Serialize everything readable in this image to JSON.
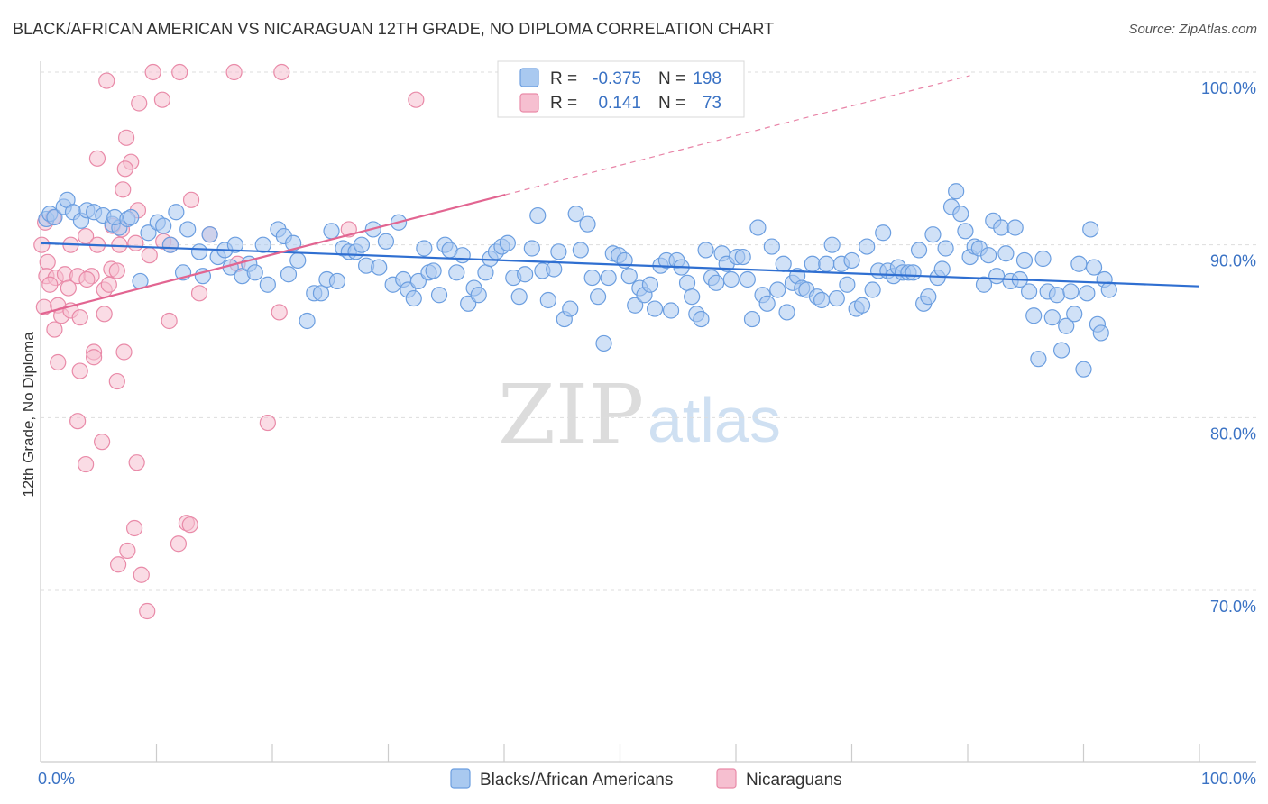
{
  "title": "BLACK/AFRICAN AMERICAN VS NICARAGUAN 12TH GRADE, NO DIPLOMA CORRELATION CHART",
  "source": "Source: ZipAtlas.com",
  "watermark": {
    "zip": "ZIP",
    "atlas": "atlas"
  },
  "colors": {
    "blue_fill": "#a9c9f0",
    "blue_stroke": "#6b9ee0",
    "blue_line": "#2f6fd1",
    "pink_fill": "#f6bfd0",
    "pink_stroke": "#e98aa8",
    "pink_line": "#e26591",
    "tick_text": "#3a72c4",
    "grid": "#dddddd"
  },
  "legend": {
    "r_label": "R =",
    "n_label": "N =",
    "rows": [
      {
        "r": "-0.375",
        "n": "198",
        "color": "blue"
      },
      {
        "r": "0.141",
        "n": "73",
        "color": "pink"
      }
    ]
  },
  "chart_data": {
    "type": "scatter",
    "title": "BLACK/AFRICAN AMERICAN VS NICARAGUAN 12TH GRADE, NO DIPLOMA CORRELATION CHART",
    "xlabel": "",
    "ylabel": "12th Grade, No Diploma",
    "xlim": [
      0,
      100
    ],
    "ylim": [
      59.5,
      100.8
    ],
    "y_ticks": [
      {
        "value": 70,
        "label": "70.0%"
      },
      {
        "value": 80,
        "label": "80.0%"
      },
      {
        "value": 90,
        "label": "90.0%"
      },
      {
        "value": 100,
        "label": "100.0%"
      }
    ],
    "x_tick_labels": {
      "left": "0.0%",
      "right": "100.0%"
    },
    "x_minor_ticks": [
      10,
      20,
      30,
      40,
      50,
      60,
      70,
      80,
      90
    ],
    "grid": true,
    "legend_position": "top-center",
    "series": [
      {
        "name": "Blacks/African Americans",
        "color": "blue",
        "trend": {
          "x": [
            0,
            100
          ],
          "y": [
            90.1,
            87.6
          ],
          "dashed_extension": false
        },
        "points": [
          [
            0.5,
            91.5
          ],
          [
            0.8,
            91.8
          ],
          [
            1.2,
            91.6
          ],
          [
            2.0,
            92.2
          ],
          [
            2.3,
            92.6
          ],
          [
            2.8,
            91.9
          ],
          [
            3.5,
            91.4
          ],
          [
            4.0,
            92.0
          ],
          [
            4.6,
            91.9
          ],
          [
            5.4,
            91.7
          ],
          [
            6.2,
            91.2
          ],
          [
            6.8,
            91.0
          ],
          [
            6.4,
            91.6
          ],
          [
            7.5,
            91.5
          ],
          [
            7.8,
            91.6
          ],
          [
            8.6,
            87.9
          ],
          [
            9.3,
            90.7
          ],
          [
            10.1,
            91.3
          ],
          [
            10.6,
            91.1
          ],
          [
            11.2,
            90.0
          ],
          [
            11.7,
            91.9
          ],
          [
            12.3,
            88.4
          ],
          [
            12.7,
            90.9
          ],
          [
            13.7,
            89.6
          ],
          [
            14.0,
            88.2
          ],
          [
            14.6,
            90.6
          ],
          [
            15.3,
            89.3
          ],
          [
            15.9,
            89.7
          ],
          [
            16.4,
            88.7
          ],
          [
            16.8,
            90.0
          ],
          [
            17.4,
            88.2
          ],
          [
            18.0,
            88.9
          ],
          [
            18.5,
            88.4
          ],
          [
            19.2,
            90.0
          ],
          [
            19.6,
            87.7
          ],
          [
            20.5,
            90.9
          ],
          [
            21.0,
            90.5
          ],
          [
            21.4,
            88.3
          ],
          [
            21.8,
            90.1
          ],
          [
            22.2,
            89.1
          ],
          [
            23.0,
            85.6
          ],
          [
            23.6,
            87.2
          ],
          [
            24.2,
            87.2
          ],
          [
            24.7,
            88.0
          ],
          [
            25.1,
            90.8
          ],
          [
            25.6,
            87.9
          ],
          [
            26.1,
            89.8
          ],
          [
            26.6,
            89.6
          ],
          [
            27.2,
            89.6
          ],
          [
            27.7,
            90.0
          ],
          [
            28.1,
            88.8
          ],
          [
            28.7,
            90.9
          ],
          [
            29.2,
            88.7
          ],
          [
            29.8,
            90.2
          ],
          [
            30.4,
            87.7
          ],
          [
            30.9,
            91.3
          ],
          [
            31.3,
            88.0
          ],
          [
            31.7,
            87.4
          ],
          [
            32.2,
            86.9
          ],
          [
            32.6,
            87.9
          ],
          [
            33.1,
            89.8
          ],
          [
            33.5,
            88.4
          ],
          [
            33.9,
            88.5
          ],
          [
            34.4,
            87.1
          ],
          [
            34.9,
            90.0
          ],
          [
            35.3,
            89.7
          ],
          [
            35.9,
            88.4
          ],
          [
            36.4,
            89.4
          ],
          [
            36.9,
            86.6
          ],
          [
            37.4,
            87.5
          ],
          [
            37.8,
            87.1
          ],
          [
            38.4,
            88.4
          ],
          [
            38.8,
            89.2
          ],
          [
            39.3,
            89.6
          ],
          [
            39.8,
            89.9
          ],
          [
            40.3,
            90.1
          ],
          [
            40.8,
            88.1
          ],
          [
            41.3,
            87.0
          ],
          [
            41.8,
            88.3
          ],
          [
            42.4,
            89.8
          ],
          [
            42.9,
            91.7
          ],
          [
            43.3,
            88.5
          ],
          [
            43.8,
            86.8
          ],
          [
            44.3,
            88.6
          ],
          [
            44.7,
            89.6
          ],
          [
            45.2,
            85.7
          ],
          [
            45.7,
            86.3
          ],
          [
            46.2,
            91.8
          ],
          [
            46.6,
            89.7
          ],
          [
            47.2,
            91.2
          ],
          [
            47.6,
            88.1
          ],
          [
            48.1,
            87.0
          ],
          [
            48.6,
            84.3
          ],
          [
            49.0,
            88.1
          ],
          [
            49.4,
            89.5
          ],
          [
            49.9,
            89.4
          ],
          [
            50.4,
            89.1
          ],
          [
            50.8,
            88.2
          ],
          [
            51.3,
            86.5
          ],
          [
            51.7,
            87.5
          ],
          [
            52.1,
            87.1
          ],
          [
            52.6,
            87.7
          ],
          [
            53.0,
            86.3
          ],
          [
            53.5,
            88.8
          ],
          [
            54.0,
            89.1
          ],
          [
            54.4,
            86.2
          ],
          [
            54.9,
            89.1
          ],
          [
            55.3,
            88.7
          ],
          [
            55.8,
            87.8
          ],
          [
            56.2,
            87.0
          ],
          [
            56.6,
            86.0
          ],
          [
            57.0,
            85.7
          ],
          [
            57.4,
            89.7
          ],
          [
            57.9,
            88.1
          ],
          [
            58.3,
            87.8
          ],
          [
            58.8,
            89.5
          ],
          [
            59.2,
            88.9
          ],
          [
            59.6,
            88.0
          ],
          [
            60.1,
            89.3
          ],
          [
            60.6,
            89.3
          ],
          [
            61.0,
            88.0
          ],
          [
            61.4,
            85.7
          ],
          [
            61.9,
            91.0
          ],
          [
            62.3,
            87.1
          ],
          [
            62.7,
            86.6
          ],
          [
            63.1,
            89.9
          ],
          [
            63.6,
            87.4
          ],
          [
            64.1,
            88.9
          ],
          [
            64.4,
            86.1
          ],
          [
            64.9,
            87.8
          ],
          [
            65.3,
            88.2
          ],
          [
            65.7,
            87.5
          ],
          [
            66.1,
            87.4
          ],
          [
            66.6,
            88.9
          ],
          [
            67.0,
            87.0
          ],
          [
            67.4,
            86.8
          ],
          [
            67.8,
            88.9
          ],
          [
            68.3,
            90.0
          ],
          [
            68.7,
            86.9
          ],
          [
            69.1,
            88.9
          ],
          [
            69.6,
            87.7
          ],
          [
            70.0,
            89.1
          ],
          [
            70.4,
            86.3
          ],
          [
            70.9,
            86.5
          ],
          [
            71.3,
            89.9
          ],
          [
            71.8,
            87.4
          ],
          [
            72.3,
            88.5
          ],
          [
            72.7,
            90.7
          ],
          [
            73.1,
            88.5
          ],
          [
            73.6,
            88.2
          ],
          [
            74.0,
            88.7
          ],
          [
            74.4,
            88.4
          ],
          [
            74.9,
            88.4
          ],
          [
            75.3,
            88.4
          ],
          [
            75.8,
            89.7
          ],
          [
            76.2,
            86.6
          ],
          [
            76.6,
            87.0
          ],
          [
            77.0,
            90.6
          ],
          [
            77.4,
            88.1
          ],
          [
            77.8,
            88.6
          ],
          [
            78.1,
            89.8
          ],
          [
            78.6,
            92.2
          ],
          [
            79.0,
            93.1
          ],
          [
            79.4,
            91.8
          ],
          [
            79.8,
            90.8
          ],
          [
            80.2,
            89.3
          ],
          [
            80.6,
            89.9
          ],
          [
            81.0,
            89.8
          ],
          [
            81.4,
            87.7
          ],
          [
            81.8,
            89.4
          ],
          [
            82.2,
            91.4
          ],
          [
            82.5,
            88.2
          ],
          [
            82.9,
            91.0
          ],
          [
            83.3,
            89.5
          ],
          [
            83.7,
            87.9
          ],
          [
            84.1,
            91.0
          ],
          [
            84.5,
            88.0
          ],
          [
            84.9,
            89.1
          ],
          [
            85.3,
            87.3
          ],
          [
            85.7,
            85.9
          ],
          [
            86.1,
            83.4
          ],
          [
            86.5,
            89.2
          ],
          [
            86.9,
            87.3
          ],
          [
            87.3,
            85.8
          ],
          [
            87.7,
            87.1
          ],
          [
            88.1,
            83.9
          ],
          [
            88.5,
            85.3
          ],
          [
            88.9,
            87.3
          ],
          [
            89.2,
            86.0
          ],
          [
            89.6,
            88.9
          ],
          [
            90.0,
            82.8
          ],
          [
            90.3,
            87.2
          ],
          [
            90.6,
            90.9
          ],
          [
            90.9,
            88.7
          ],
          [
            91.2,
            85.4
          ],
          [
            91.5,
            84.9
          ],
          [
            91.8,
            88.0
          ],
          [
            92.2,
            87.4
          ]
        ]
      },
      {
        "name": "Nicaraguans",
        "color": "pink",
        "trend": {
          "x": [
            0,
            40.1
          ],
          "y": [
            86.0,
            92.9
          ],
          "dashed_to": [
            80.2,
            99.8
          ]
        },
        "points": [
          [
            9.7,
            100.0
          ],
          [
            12.0,
            100.0
          ],
          [
            16.7,
            100.0
          ],
          [
            20.8,
            100.0
          ],
          [
            5.7,
            99.5
          ],
          [
            8.5,
            98.2
          ],
          [
            10.5,
            98.4
          ],
          [
            32.4,
            98.4
          ],
          [
            7.4,
            96.2
          ],
          [
            4.9,
            95.0
          ],
          [
            7.8,
            94.8
          ],
          [
            7.3,
            94.4
          ],
          [
            7.1,
            93.2
          ],
          [
            13.0,
            92.6
          ],
          [
            8.4,
            92.0
          ],
          [
            0.4,
            91.3
          ],
          [
            1.1,
            91.6
          ],
          [
            6.2,
            91.1
          ],
          [
            10.6,
            90.2
          ],
          [
            11.2,
            90.0
          ],
          [
            2.6,
            90.0
          ],
          [
            3.9,
            90.5
          ],
          [
            4.9,
            90.0
          ],
          [
            6.8,
            90.0
          ],
          [
            8.2,
            90.1
          ],
          [
            0.1,
            90.0
          ],
          [
            9.4,
            89.4
          ],
          [
            0.6,
            89.0
          ],
          [
            0.5,
            88.2
          ],
          [
            1.3,
            88.1
          ],
          [
            2.1,
            88.3
          ],
          [
            3.2,
            88.2
          ],
          [
            4.4,
            88.2
          ],
          [
            6.1,
            88.6
          ],
          [
            6.6,
            88.5
          ],
          [
            0.8,
            87.7
          ],
          [
            2.4,
            87.5
          ],
          [
            4.0,
            88.0
          ],
          [
            5.5,
            87.4
          ],
          [
            5.9,
            87.7
          ],
          [
            13.7,
            87.2
          ],
          [
            0.3,
            86.4
          ],
          [
            1.5,
            86.5
          ],
          [
            1.8,
            85.9
          ],
          [
            2.6,
            86.2
          ],
          [
            3.4,
            85.8
          ],
          [
            5.5,
            86.0
          ],
          [
            11.1,
            85.6
          ],
          [
            1.2,
            85.1
          ],
          [
            20.6,
            86.1
          ],
          [
            1.5,
            83.2
          ],
          [
            3.4,
            82.7
          ],
          [
            4.6,
            83.8
          ],
          [
            4.6,
            83.5
          ],
          [
            7.2,
            83.8
          ],
          [
            6.6,
            82.1
          ],
          [
            3.2,
            79.8
          ],
          [
            5.3,
            78.6
          ],
          [
            3.9,
            77.3
          ],
          [
            8.3,
            77.4
          ],
          [
            19.6,
            79.7
          ],
          [
            8.1,
            73.6
          ],
          [
            12.6,
            73.9
          ],
          [
            12.9,
            73.8
          ],
          [
            11.9,
            72.7
          ],
          [
            7.5,
            72.3
          ],
          [
            6.7,
            71.5
          ],
          [
            8.7,
            70.9
          ],
          [
            9.2,
            68.8
          ],
          [
            26.6,
            90.9
          ],
          [
            7.0,
            90.9
          ],
          [
            14.6,
            90.6
          ],
          [
            17.0,
            88.9
          ]
        ]
      }
    ]
  },
  "bottom_legend": [
    {
      "label": "Blacks/African Americans",
      "color": "blue"
    },
    {
      "label": "Nicaraguans",
      "color": "pink"
    }
  ]
}
